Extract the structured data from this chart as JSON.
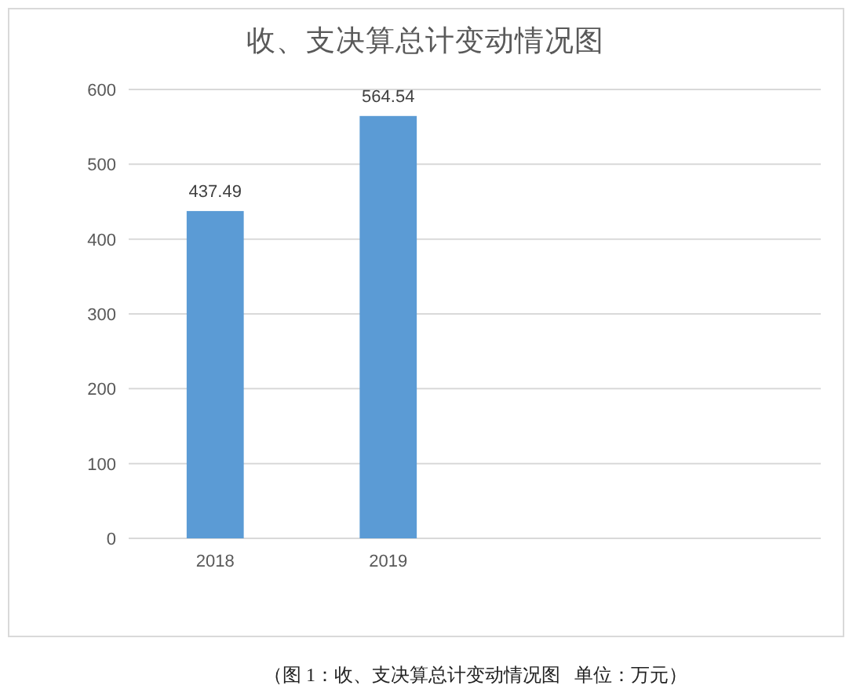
{
  "chart_data": {
    "type": "bar",
    "title": "收、支决算总计变动情况图",
    "categories": [
      "2018",
      "2019",
      null,
      null
    ],
    "values": [
      437.49,
      564.54,
      null,
      null
    ],
    "color": "#5b9bd5",
    "ylim": [
      0,
      600
    ],
    "yticks": [
      0,
      100,
      200,
      300,
      400,
      500,
      600
    ],
    "grid": "y",
    "data_labels": true,
    "annotations": [
      "（图 1：收、支决算总计变动情况图   单位：万元）"
    ]
  }
}
